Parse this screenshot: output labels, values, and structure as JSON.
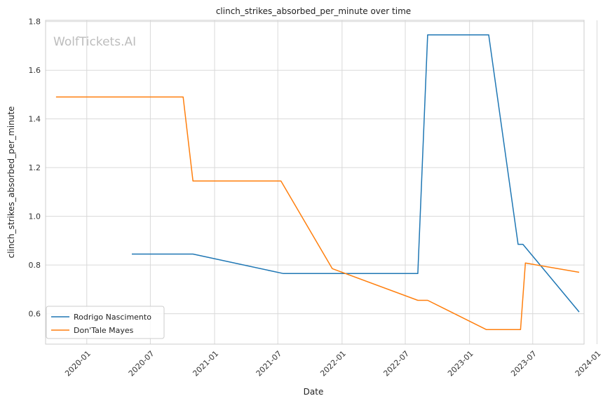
{
  "chart_data": {
    "type": "line",
    "title": "clinch_strikes_absorbed_per_minute over time",
    "xlabel": "Date",
    "ylabel": "clinch_strikes_absorbed_per_minute",
    "watermark": "WolfTickets.AI",
    "xlim": [
      "2019-09-05",
      "2023-11-25"
    ],
    "ylim": [
      0.475,
      1.805
    ],
    "x_ticks": [
      "2020-01-01",
      "2020-07-01",
      "2021-01-01",
      "2021-07-01",
      "2022-01-01",
      "2022-07-01",
      "2023-01-01",
      "2023-07-01",
      "2024-01-01"
    ],
    "x_tick_labels": [
      "2020-01",
      "2020-07",
      "2021-01",
      "2021-07",
      "2022-01",
      "2022-07",
      "2023-01",
      "2023-07",
      "2024-01"
    ],
    "y_ticks": [
      0.6,
      0.8,
      1.0,
      1.2,
      1.4,
      1.6,
      1.8
    ],
    "y_tick_labels": [
      "0.6",
      "0.8",
      "1.0",
      "1.2",
      "1.4",
      "1.6",
      "1.8"
    ],
    "grid": true,
    "legend_position": "lower-left",
    "series": [
      {
        "name": "Rodrigo Nascimento",
        "color": "#1f77b4",
        "points": [
          {
            "x": "2020-05-09",
            "y": 0.845
          },
          {
            "x": "2020-10-31",
            "y": 0.845
          },
          {
            "x": "2021-07-17",
            "y": 0.765
          },
          {
            "x": "2022-08-06",
            "y": 0.765
          },
          {
            "x": "2022-09-03",
            "y": 1.745
          },
          {
            "x": "2023-02-25",
            "y": 1.745
          },
          {
            "x": "2023-05-20",
            "y": 0.885
          },
          {
            "x": "2023-06-03",
            "y": 0.885
          },
          {
            "x": "2023-11-11",
            "y": 0.607
          }
        ]
      },
      {
        "name": "Don'Tale Mayes",
        "color": "#ff7f0e",
        "points": [
          {
            "x": "2019-10-05",
            "y": 1.49
          },
          {
            "x": "2020-10-03",
            "y": 1.49
          },
          {
            "x": "2020-10-31",
            "y": 1.145
          },
          {
            "x": "2021-07-10",
            "y": 1.145
          },
          {
            "x": "2021-12-04",
            "y": 0.785
          },
          {
            "x": "2022-08-06",
            "y": 0.655
          },
          {
            "x": "2022-09-03",
            "y": 0.655
          },
          {
            "x": "2023-02-18",
            "y": 0.535
          },
          {
            "x": "2023-05-27",
            "y": 0.535
          },
          {
            "x": "2023-06-10",
            "y": 0.808
          },
          {
            "x": "2023-11-11",
            "y": 0.77
          }
        ]
      }
    ]
  }
}
